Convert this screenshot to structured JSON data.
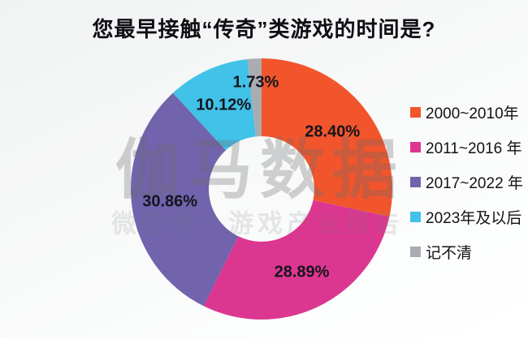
{
  "title": "您最早接触“传奇”类游戏的时间是?",
  "watermark": {
    "line1": "伽马数据",
    "line2": "微信号：游戏产业报告"
  },
  "chart_data": {
    "type": "pie",
    "subtype": "donut",
    "title": "您最早接触“传奇”类游戏的时间是?",
    "categories": [
      "2000~2010年",
      "2011~2016 年",
      "2017~2022 年",
      "2023年及以后",
      "记不清"
    ],
    "values": [
      28.4,
      28.89,
      30.86,
      10.12,
      1.73
    ],
    "value_labels": [
      "28.40%",
      "28.89%",
      "30.86%",
      "10.12%",
      "1.73%"
    ],
    "colors": [
      "#F2552C",
      "#DC3790",
      "#7163AC",
      "#41C2E9",
      "#ABACB2"
    ],
    "start_angle_deg": 0,
    "direction": "clockwise",
    "legend_position": "right",
    "hole_color": "#FFFFFF"
  }
}
